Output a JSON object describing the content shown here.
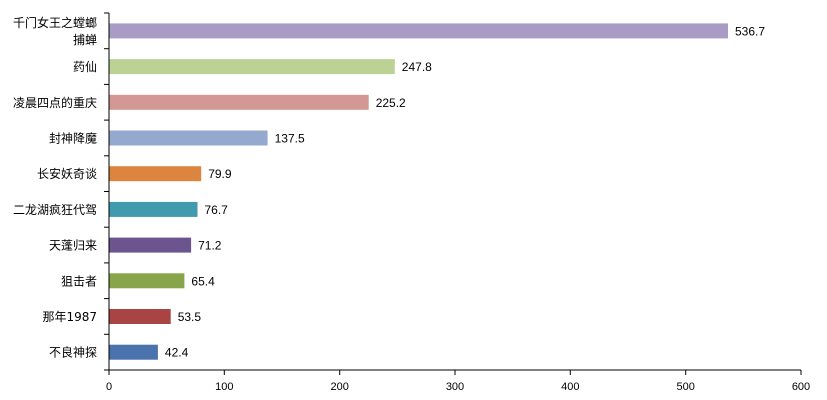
{
  "chart_data": {
    "type": "bar",
    "orientation": "horizontal",
    "title": "",
    "xlabel": "",
    "ylabel": "",
    "xlim": [
      0,
      600
    ],
    "x_ticks": [
      0,
      100,
      200,
      300,
      400,
      500,
      600
    ],
    "grid": false,
    "legend": "none",
    "categories": [
      [
        "千门女王之螳螂",
        "捕蝉"
      ],
      [
        "药仙"
      ],
      [
        "凌晨四点的重庆"
      ],
      [
        "封神降魔"
      ],
      [
        "长安妖奇谈"
      ],
      [
        "二龙湖疯狂代驾"
      ],
      [
        "天蓬归来"
      ],
      [
        "狙击者"
      ],
      [
        "那年1987"
      ],
      [
        "不良神探"
      ]
    ],
    "values": [
      536.7,
      247.8,
      225.2,
      137.5,
      79.9,
      76.7,
      71.2,
      65.4,
      53.5,
      42.4
    ],
    "value_labels": [
      "536.7",
      "247.8",
      "225.2",
      "137.5",
      "79.9",
      "76.7",
      "71.2",
      "65.4",
      "53.5",
      "42.4"
    ],
    "colors": [
      "#a89cc4",
      "#bcd295",
      "#d39893",
      "#95a9cf",
      "#dc853f",
      "#3f9bad",
      "#6c558f",
      "#88a649",
      "#a84443",
      "#4a72ad"
    ]
  }
}
